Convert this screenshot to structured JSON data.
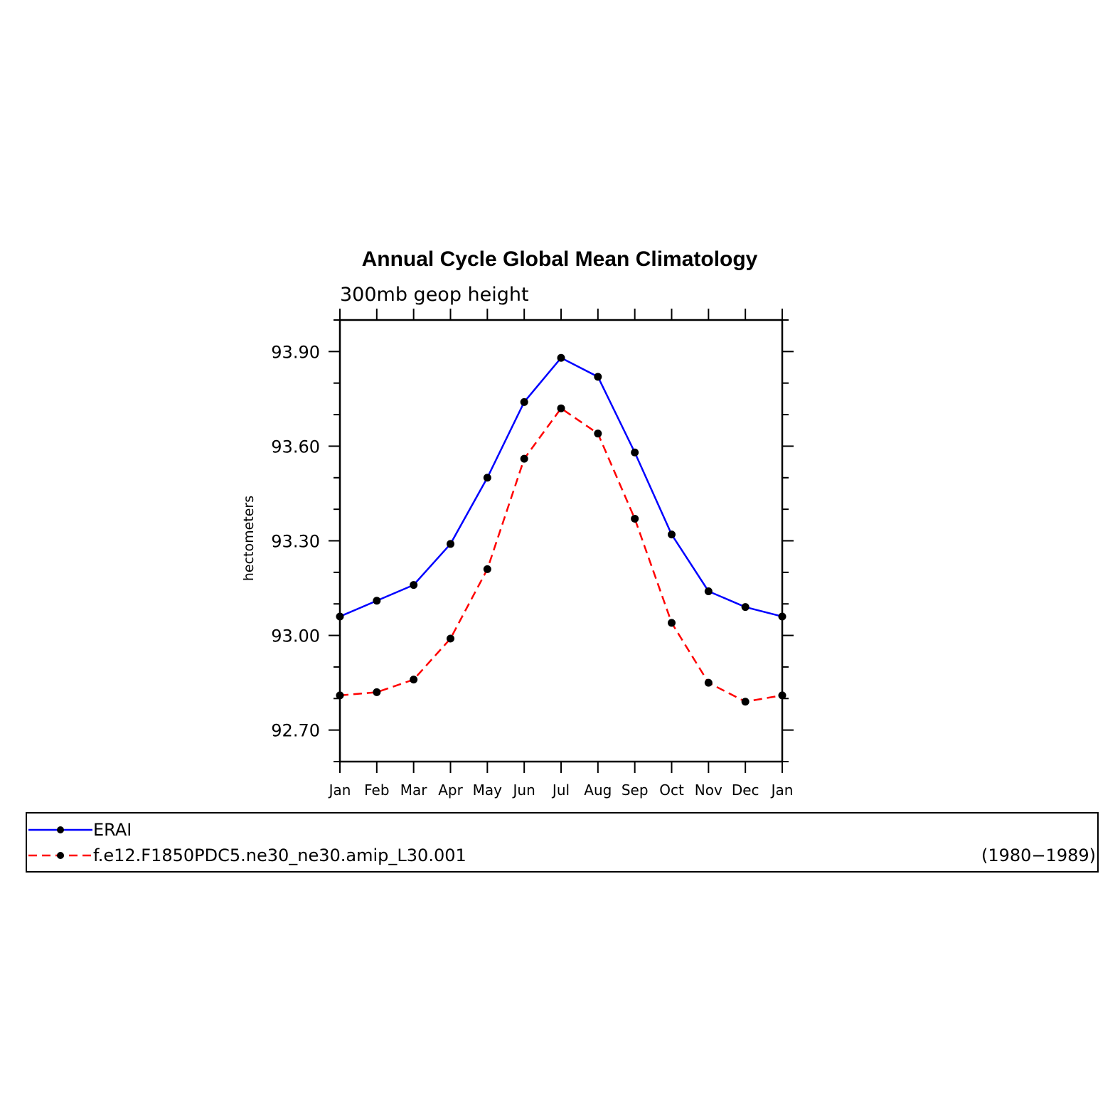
{
  "chart_data": {
    "type": "line",
    "title": "Annual Cycle Global Mean Climatology",
    "subtitle": "300mb geop height",
    "ylabel": "hectometers",
    "xlabel": "",
    "ylim": [
      92.6,
      94.0
    ],
    "yticks": [
      92.7,
      93.0,
      93.3,
      93.6,
      93.9
    ],
    "ytick_labels": [
      "92.70",
      "93.00",
      "93.30",
      "93.60",
      "93.90"
    ],
    "categories": [
      "Jan",
      "Feb",
      "Mar",
      "Apr",
      "May",
      "Jun",
      "Jul",
      "Aug",
      "Sep",
      "Oct",
      "Nov",
      "Dec",
      "Jan"
    ],
    "series": [
      {
        "name": "ERAI",
        "color": "#0000ff",
        "dash": "solid",
        "marker": "dot",
        "values": [
          93.06,
          93.11,
          93.16,
          93.29,
          93.5,
          93.74,
          93.88,
          93.82,
          93.58,
          93.32,
          93.14,
          93.09,
          93.06
        ]
      },
      {
        "name": "f.e12.F1850PDC5.ne30_ne30.amip_L30.001",
        "color": "#ff0000",
        "dash": "dashed",
        "marker": "dot",
        "values": [
          92.81,
          92.82,
          92.86,
          92.99,
          93.21,
          93.56,
          93.72,
          93.64,
          93.37,
          93.04,
          92.85,
          92.79,
          92.81
        ]
      }
    ],
    "grid": false,
    "legend_position": "bottom",
    "legend_note": "(1980−1989)"
  }
}
